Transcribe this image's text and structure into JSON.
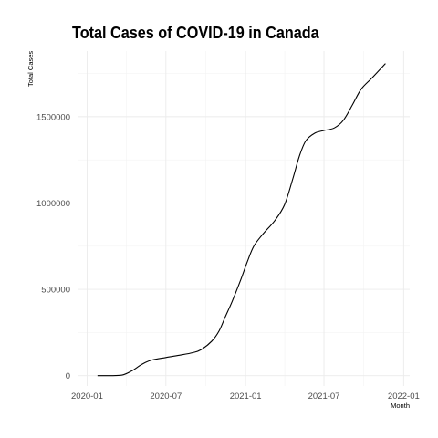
{
  "chart_data": {
    "type": "line",
    "title": "Total Cases of COVID-19 in Canada",
    "xlabel": "Month",
    "ylabel": "Total Cases",
    "x_ticks": [
      "2020-01",
      "2020-07",
      "2021-01",
      "2021-07",
      "2022-01"
    ],
    "y_ticks": [
      "0",
      "500000",
      "1000000",
      "1500000"
    ],
    "ylim": [
      -60000,
      1880000
    ],
    "xlim": [
      "2019-12-10",
      "2022-01-15"
    ],
    "grid": true,
    "series": [
      {
        "values": [
          {
            "x": "2020-01-25",
            "y": 0
          },
          {
            "x": "2020-03-01",
            "y": 0
          },
          {
            "x": "2020-03-25",
            "y": 5000
          },
          {
            "x": "2020-04-15",
            "y": 30000
          },
          {
            "x": "2020-05-01",
            "y": 57000
          },
          {
            "x": "2020-05-15",
            "y": 77000
          },
          {
            "x": "2020-06-01",
            "y": 92000
          },
          {
            "x": "2020-07-01",
            "y": 105000
          },
          {
            "x": "2020-08-01",
            "y": 118000
          },
          {
            "x": "2020-09-01",
            "y": 133000
          },
          {
            "x": "2020-09-20",
            "y": 150000
          },
          {
            "x": "2020-10-15",
            "y": 200000
          },
          {
            "x": "2020-11-01",
            "y": 260000
          },
          {
            "x": "2020-11-15",
            "y": 340000
          },
          {
            "x": "2020-12-01",
            "y": 430000
          },
          {
            "x": "2020-12-20",
            "y": 550000
          },
          {
            "x": "2021-01-05",
            "y": 660000
          },
          {
            "x": "2021-01-20",
            "y": 750000
          },
          {
            "x": "2021-02-10",
            "y": 820000
          },
          {
            "x": "2021-03-10",
            "y": 900000
          },
          {
            "x": "2021-04-01",
            "y": 990000
          },
          {
            "x": "2021-04-20",
            "y": 1140000
          },
          {
            "x": "2021-05-05",
            "y": 1270000
          },
          {
            "x": "2021-05-20",
            "y": 1360000
          },
          {
            "x": "2021-06-10",
            "y": 1405000
          },
          {
            "x": "2021-07-01",
            "y": 1420000
          },
          {
            "x": "2021-07-25",
            "y": 1435000
          },
          {
            "x": "2021-08-15",
            "y": 1480000
          },
          {
            "x": "2021-09-05",
            "y": 1570000
          },
          {
            "x": "2021-09-25",
            "y": 1660000
          },
          {
            "x": "2021-10-20",
            "y": 1725000
          },
          {
            "x": "2021-11-20",
            "y": 1808000
          }
        ]
      }
    ]
  }
}
